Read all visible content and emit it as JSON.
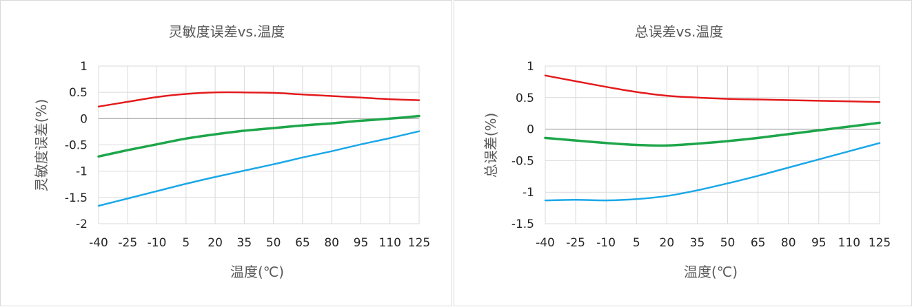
{
  "chart_data": [
    {
      "type": "line",
      "title": "灵敏度误差vs.温度",
      "xlabel": "温度(℃)",
      "ylabel": "灵敏度误差(%)",
      "categories": [
        "-40",
        "-25",
        "-10",
        "5",
        "20",
        "35",
        "50",
        "65",
        "80",
        "95",
        "110",
        "125"
      ],
      "ylim": [
        -2,
        1
      ],
      "yticks": [
        "1",
        "0.5",
        "0",
        "-0.5",
        "-1",
        "-1.5",
        "-2"
      ],
      "grid": true,
      "legend": "none",
      "series": [
        {
          "color": "#e31a1c",
          "values": [
            0.23,
            0.32,
            0.41,
            0.47,
            0.5,
            0.5,
            0.49,
            0.46,
            0.43,
            0.4,
            0.37,
            0.35
          ]
        },
        {
          "color": "#1ea64a",
          "values": [
            -0.72,
            -0.6,
            -0.49,
            -0.38,
            -0.3,
            -0.23,
            -0.18,
            -0.13,
            -0.09,
            -0.04,
            0.0,
            0.05
          ]
        },
        {
          "color": "#1aa7e8",
          "values": [
            -1.66,
            -1.52,
            -1.38,
            -1.24,
            -1.11,
            -0.99,
            -0.87,
            -0.74,
            -0.62,
            -0.49,
            -0.37,
            -0.24
          ]
        }
      ]
    },
    {
      "type": "line",
      "title": "总误差vs.温度",
      "xlabel": "温度(℃)",
      "ylabel": "总误差(%)",
      "categories": [
        "-40",
        "-25",
        "-10",
        "5",
        "20",
        "35",
        "50",
        "65",
        "80",
        "95",
        "110",
        "125"
      ],
      "ylim": [
        -1.5,
        1
      ],
      "yticks": [
        "1",
        "0.5",
        "0",
        "-0.5",
        "-1",
        "-1.5"
      ],
      "grid": true,
      "legend": "none",
      "series": [
        {
          "color": "#e31a1c",
          "values": [
            0.85,
            0.76,
            0.67,
            0.59,
            0.53,
            0.5,
            0.48,
            0.47,
            0.46,
            0.45,
            0.44,
            0.43
          ]
        },
        {
          "color": "#1ea64a",
          "values": [
            -0.14,
            -0.18,
            -0.22,
            -0.25,
            -0.26,
            -0.23,
            -0.19,
            -0.14,
            -0.08,
            -0.02,
            0.04,
            0.1
          ]
        },
        {
          "color": "#1aa7e8",
          "values": [
            -1.13,
            -1.12,
            -1.13,
            -1.11,
            -1.06,
            -0.97,
            -0.86,
            -0.74,
            -0.61,
            -0.48,
            -0.35,
            -0.22
          ]
        }
      ]
    }
  ]
}
